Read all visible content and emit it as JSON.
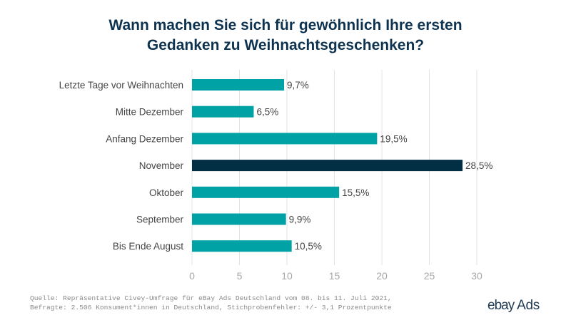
{
  "title_line1": "Wann machen Sie sich für gewöhnlich Ihre ersten",
  "title_line2": "Gedanken zu Weihnachtsgeschenken?",
  "chart_data": {
    "type": "bar",
    "orientation": "horizontal",
    "title": "Wann machen Sie sich für gewöhnlich Ihre ersten Gedanken zu Weihnachtsgeschenken?",
    "categories": [
      "Letzte Tage vor Weihnachten",
      "Mitte Dezember",
      "Anfang Dezember",
      "November",
      "Oktober",
      "September",
      "Bis Ende August"
    ],
    "values": [
      9.7,
      6.5,
      19.5,
      28.5,
      15.5,
      9.9,
      10.5
    ],
    "data_labels": [
      "9,7%",
      "6,5%",
      "19,5%",
      "28,5%",
      "15,5%",
      "9,9%",
      "10,5%"
    ],
    "highlight_index": 3,
    "colors": {
      "default": "#00a2a6",
      "highlight": "#032f45",
      "grid": "#e3e3e3",
      "tick_label": "#a8a8a8",
      "category_label": "#444444",
      "value_label": "#444444"
    },
    "xlabel": "",
    "ylabel": "",
    "xlim": [
      0,
      30
    ],
    "xticks": [
      0,
      5,
      10,
      15,
      20,
      25,
      30
    ],
    "xtick_labels": [
      "0",
      "5",
      "10",
      "15",
      "20",
      "25",
      "30"
    ],
    "grid": true,
    "legend": "none"
  },
  "source_line1": "Quelle: Repräsentative Civey-Umfrage für eBay Ads Deutschland vom 08. bis 11. Juli 2021,",
  "source_line2": "Befragte: 2.506 Konsument*innen in Deutschland, Stichprobenfehler: +/- 3,1 Prozentpunkte",
  "logo": {
    "brand": "ebay",
    "product": "Ads"
  }
}
